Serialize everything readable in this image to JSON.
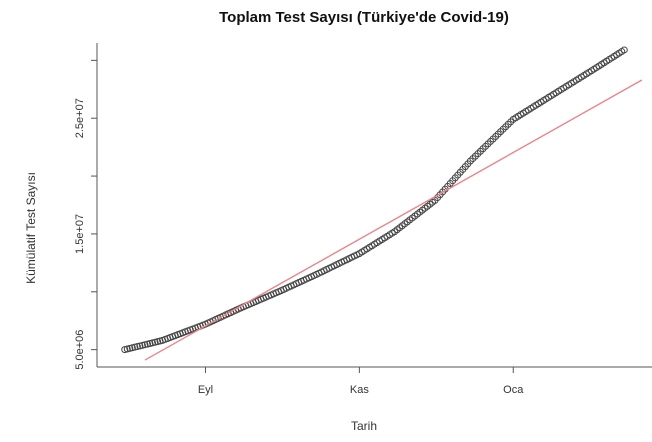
{
  "chart_data": {
    "type": "scatter",
    "title": "Toplam Test Sayısı (Türkiye'de Covid-19)",
    "xlabel": "Tarih",
    "ylabel": "Kümülatif Test Sayısı",
    "x_ticks": [
      {
        "date": "2020-09-01",
        "label": "Eyl"
      },
      {
        "date": "2020-11-01",
        "label": "Kas"
      },
      {
        "date": "2021-01-01",
        "label": "Oca"
      }
    ],
    "y_ticks": [
      {
        "value": 5000000,
        "label": "5.0e+06"
      },
      {
        "value": 10000000,
        "label": ""
      },
      {
        "value": 15000000,
        "label": "1.5e+07"
      },
      {
        "value": 20000000,
        "label": ""
      },
      {
        "value": 25000000,
        "label": "2.5e+07"
      },
      {
        "value": 30000000,
        "label": ""
      }
    ],
    "xlim": [
      "2020-07-20",
      "2021-02-25"
    ],
    "ylim": [
      3500000,
      31500000
    ],
    "series": [
      {
        "kind": "points",
        "marker": "open-circle",
        "color": "#444444",
        "x": [
          "2020-07-31",
          "2020-08-15",
          "2020-09-01",
          "2020-09-15",
          "2020-10-01",
          "2020-10-15",
          "2020-11-01",
          "2020-11-15",
          "2020-12-01",
          "2020-12-15",
          "2021-01-01",
          "2021-01-15",
          "2021-02-01",
          "2021-02-14"
        ],
        "y": [
          5000000,
          5800000,
          7200000,
          8600000,
          10100000,
          11500000,
          13300000,
          15200000,
          17900000,
          21300000,
          24900000,
          26800000,
          29100000,
          30900000
        ]
      },
      {
        "kind": "line",
        "name": "",
        "color": "#e8868c",
        "x": [
          "2020-08-08",
          "2021-02-21"
        ],
        "y": [
          4100000,
          28300000
        ]
      }
    ],
    "grid": false,
    "legend": "none"
  }
}
